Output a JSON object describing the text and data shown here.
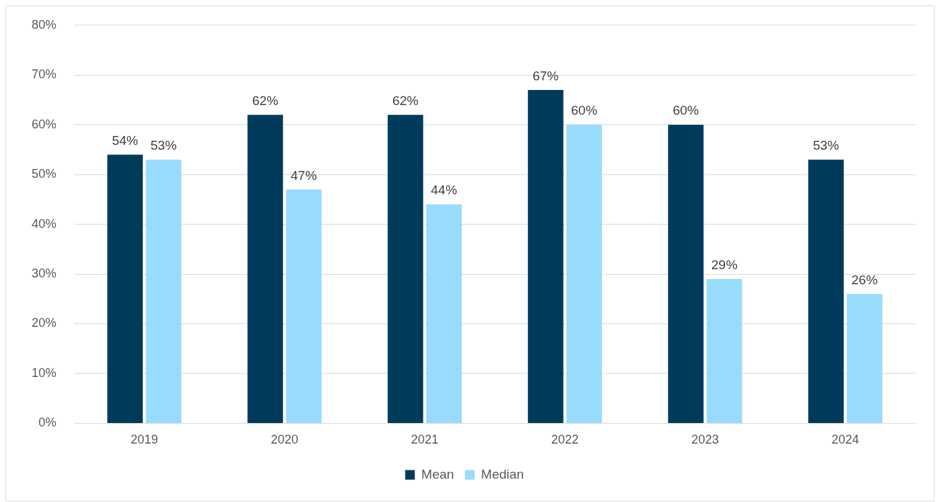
{
  "chart_data": {
    "type": "bar",
    "categories": [
      "2019",
      "2020",
      "2021",
      "2022",
      "2023",
      "2024"
    ],
    "series": [
      {
        "name": "Mean",
        "color": "#003b5c",
        "values": [
          54,
          62,
          62,
          67,
          60,
          53
        ],
        "value_labels": [
          "54%",
          "62%",
          "62%",
          "67%",
          "60%",
          "53%"
        ]
      },
      {
        "name": "Median",
        "color": "#99dbfc",
        "values": [
          53,
          47,
          44,
          60,
          29,
          26
        ],
        "value_labels": [
          "53%",
          "47%",
          "44%",
          "60%",
          "29%",
          "26%"
        ]
      }
    ],
    "ylim": [
      0,
      80
    ],
    "yticks": [
      {
        "value": 0,
        "label": "0%"
      },
      {
        "value": 10,
        "label": "10%"
      },
      {
        "value": 20,
        "label": "20%"
      },
      {
        "value": 30,
        "label": "30%"
      },
      {
        "value": 40,
        "label": "40%"
      },
      {
        "value": 50,
        "label": "50%"
      },
      {
        "value": 60,
        "label": "60%"
      },
      {
        "value": 70,
        "label": "70%"
      },
      {
        "value": 80,
        "label": "80%"
      }
    ],
    "grid": "y",
    "legend": "bottom"
  }
}
